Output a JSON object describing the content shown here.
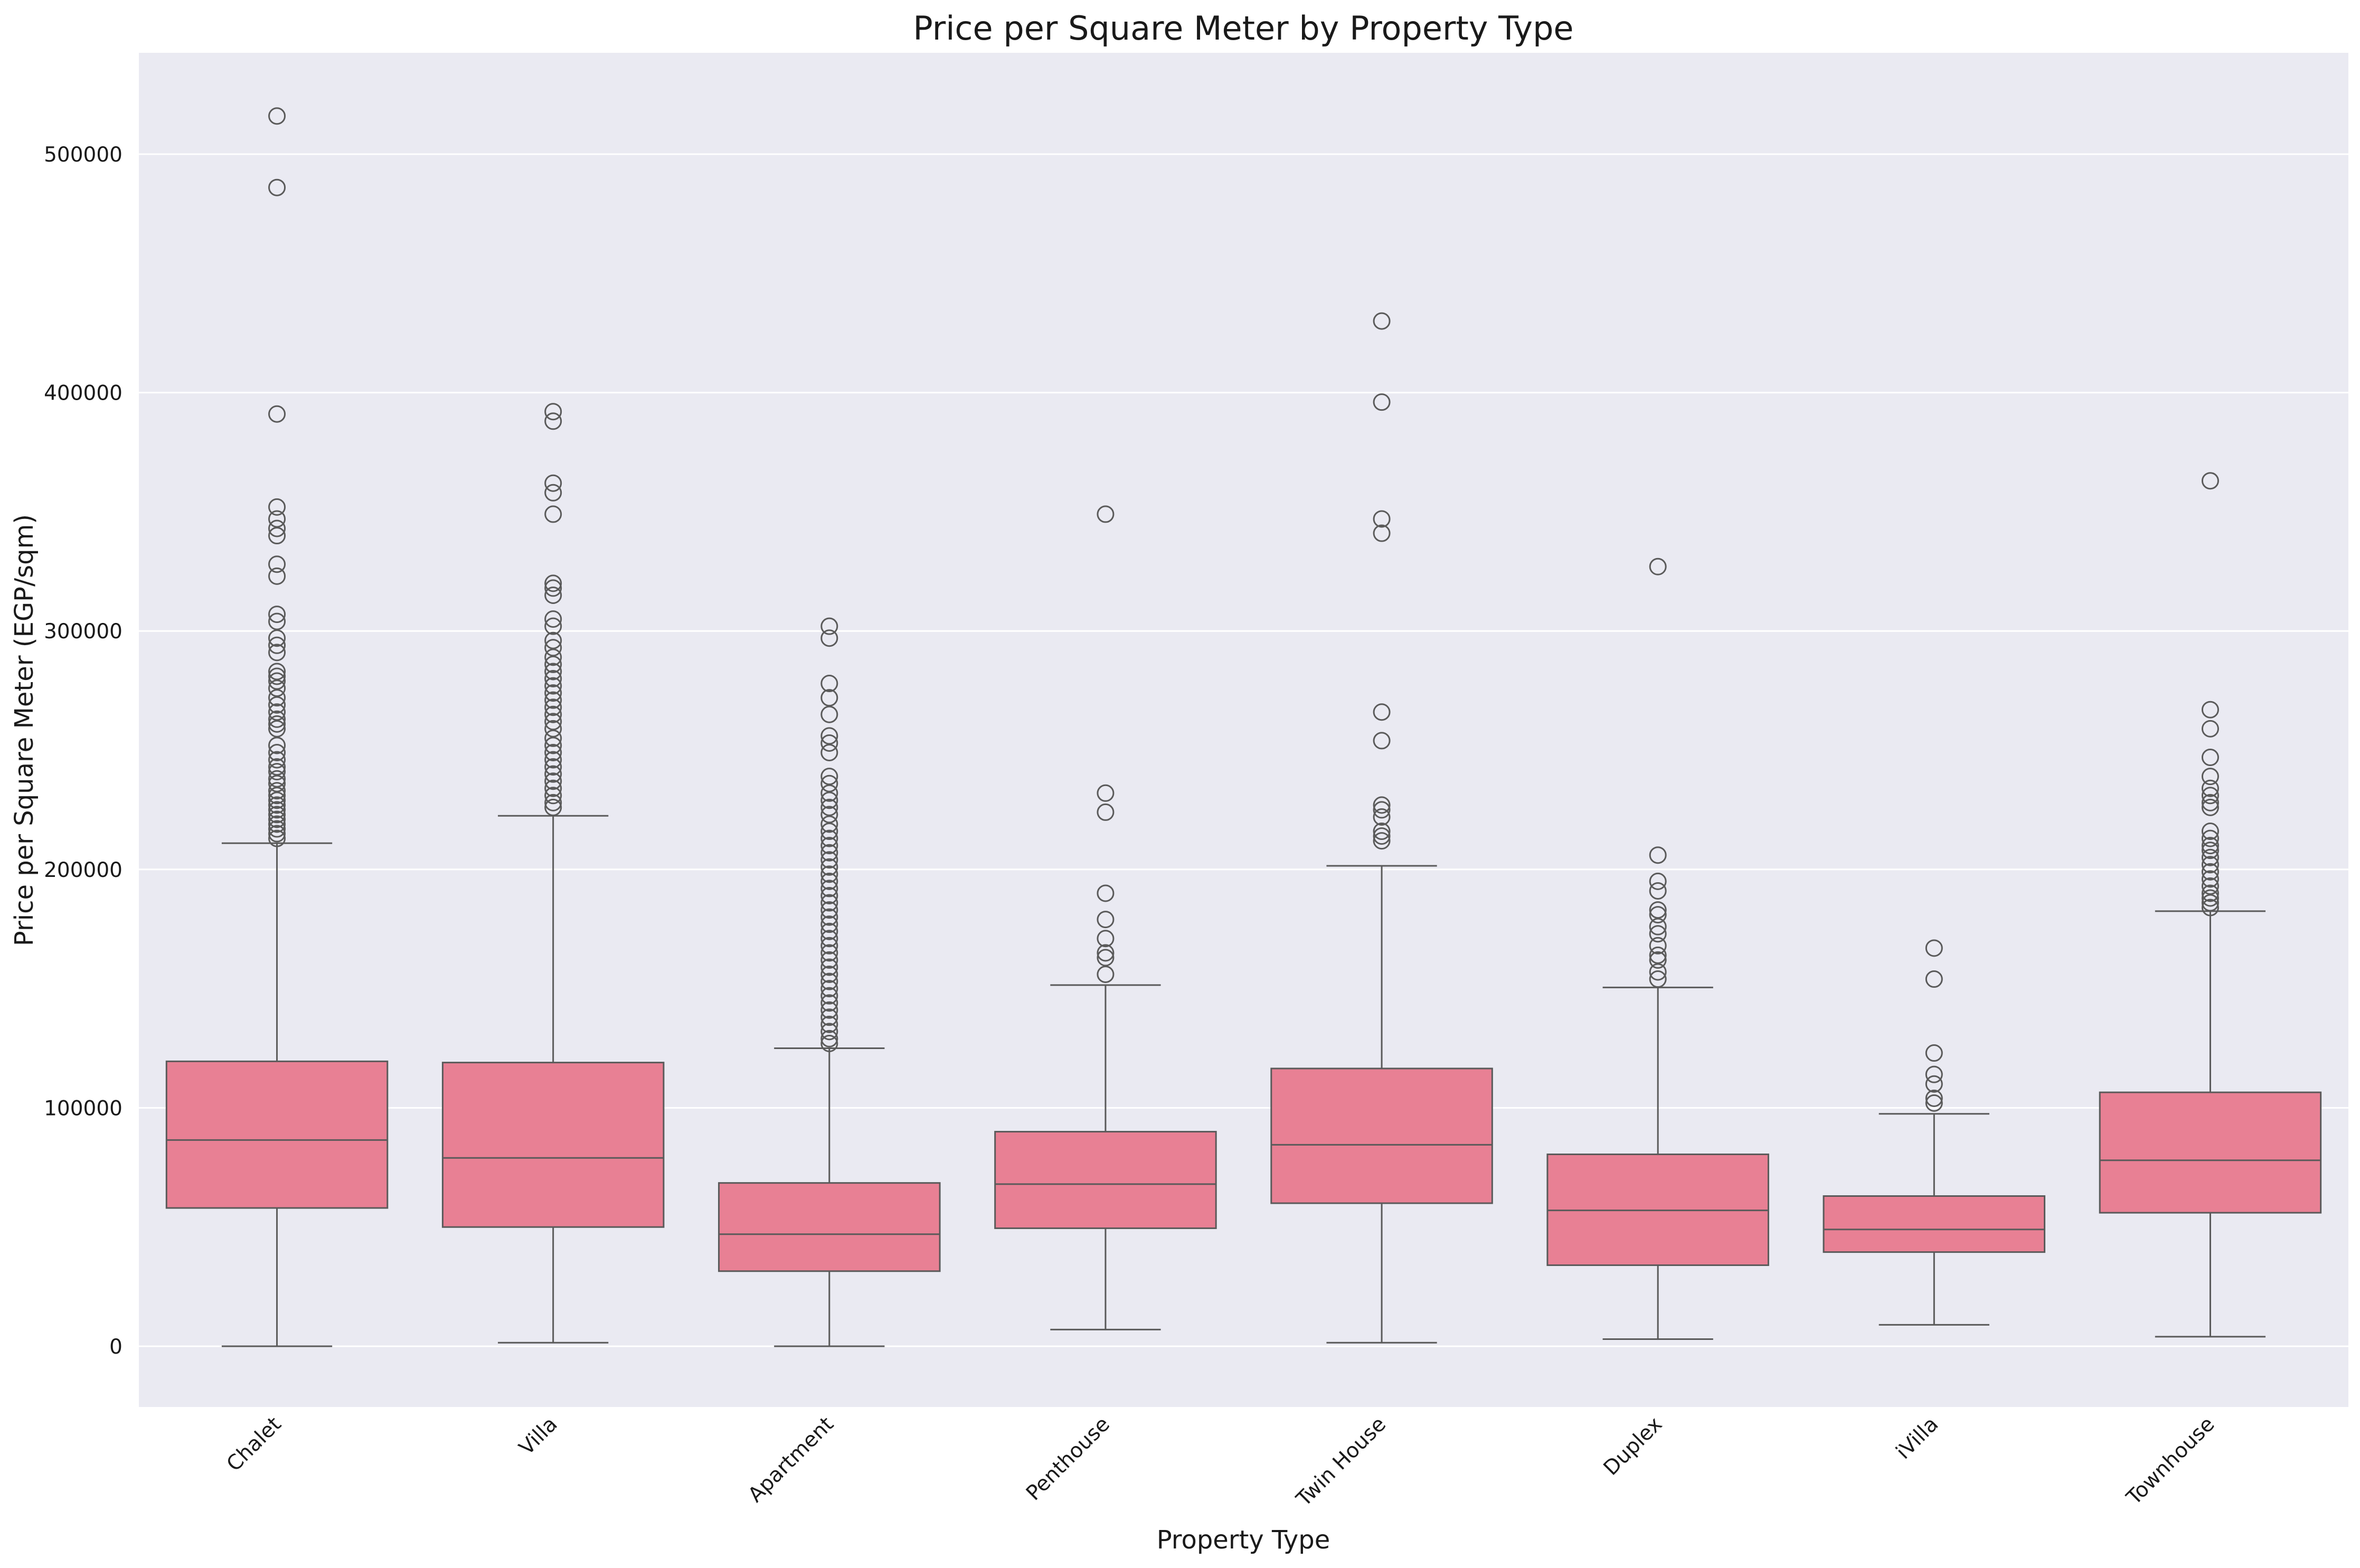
{
  "chart_data": {
    "type": "box",
    "title": "Price per Square Meter by Property Type",
    "xlabel": "Property Type",
    "ylabel": "Price per Square Meter (EGP/sqm)",
    "ylim": [
      -25000,
      542000
    ],
    "yticks": [
      0,
      100000,
      200000,
      300000,
      400000,
      500000
    ],
    "grid": true,
    "colors": {
      "box_fill": "#e88094",
      "line": "#5a5a5a",
      "plot_bg": "#eaeaf2",
      "grid": "#ffffff"
    },
    "categories": [
      "Chalet",
      "Villa",
      "Apartment",
      "Penthouse",
      "Twin House",
      "Duplex",
      "iVilla",
      "Townhouse"
    ],
    "boxes": [
      {
        "category": "Chalet",
        "whisker_low": 0,
        "q1": 58000,
        "median": 86500,
        "q3": 119500,
        "whisker_high": 211000,
        "outliers": [
          516000,
          486000,
          391000,
          352000,
          347000,
          343000,
          340000,
          328000,
          323000,
          307000,
          304000,
          297000,
          294000,
          291000,
          283000,
          281000,
          279000,
          276000,
          272000,
          269000,
          266000,
          263000,
          261000,
          259000,
          252000,
          249000,
          246000,
          243000,
          241000,
          238000,
          236000,
          233000,
          231000,
          229000,
          227000,
          225000,
          223000,
          221000,
          219000,
          217000,
          215000,
          213000
        ]
      },
      {
        "category": "Villa",
        "whisker_low": 1500,
        "q1": 50000,
        "median": 79000,
        "q3": 119000,
        "whisker_high": 222500,
        "outliers": [
          392000,
          388000,
          362000,
          358000,
          349000,
          320000,
          318000,
          315000,
          305000,
          302000,
          296000,
          293000,
          289000,
          286000,
          283000,
          280000,
          277000,
          274000,
          271000,
          268000,
          265000,
          262000,
          259000,
          255000,
          252000,
          249000,
          246000,
          243000,
          240000,
          237000,
          234000,
          231000,
          228000,
          226000
        ]
      },
      {
        "category": "Apartment",
        "whisker_low": 0,
        "q1": 31500,
        "median": 47000,
        "q3": 68500,
        "whisker_high": 125000,
        "outliers": [
          302000,
          297000,
          278000,
          272000,
          265000,
          256000,
          253000,
          249000,
          239000,
          236000,
          232000,
          229000,
          226000,
          223000,
          219000,
          216000,
          213000,
          210000,
          207000,
          204000,
          201000,
          198000,
          195000,
          192000,
          189000,
          186000,
          183000,
          180000,
          177000,
          174000,
          171000,
          168000,
          165000,
          162000,
          159000,
          156000,
          153000,
          150000,
          147000,
          144000,
          141000,
          138000,
          135000,
          132000,
          129000,
          127000
        ]
      },
      {
        "category": "Penthouse",
        "whisker_low": 7000,
        "q1": 49500,
        "median": 68000,
        "q3": 90000,
        "whisker_high": 151500,
        "outliers": [
          349000,
          232000,
          224000,
          190000,
          179000,
          171000,
          165000,
          163000,
          156000
        ]
      },
      {
        "category": "Twin House",
        "whisker_low": 1500,
        "q1": 60000,
        "median": 84500,
        "q3": 116500,
        "whisker_high": 201500,
        "outliers": [
          430000,
          396000,
          347000,
          341000,
          266000,
          254000,
          227000,
          225000,
          222000,
          216000,
          214000,
          212000
        ]
      },
      {
        "category": "Duplex",
        "whisker_low": 3000,
        "q1": 34000,
        "median": 57000,
        "q3": 80500,
        "whisker_high": 150500,
        "outliers": [
          327000,
          206000,
          195000,
          191000,
          183000,
          181000,
          176000,
          173000,
          168000,
          164000,
          162000,
          157000,
          154000
        ]
      },
      {
        "category": "iVilla",
        "whisker_low": 9000,
        "q1": 39500,
        "median": 49000,
        "q3": 63000,
        "whisker_high": 97500,
        "outliers": [
          167000,
          154000,
          123000,
          114000,
          110000,
          104000,
          102000
        ]
      },
      {
        "category": "Townhouse",
        "whisker_low": 4000,
        "q1": 56000,
        "median": 78000,
        "q3": 106500,
        "whisker_high": 182500,
        "outliers": [
          363000,
          267000,
          259000,
          247000,
          239000,
          234000,
          231000,
          228000,
          226000,
          216000,
          213000,
          210000,
          208000,
          205000,
          202000,
          199000,
          196000,
          193000,
          190000,
          188000,
          186000,
          184000
        ]
      }
    ]
  }
}
